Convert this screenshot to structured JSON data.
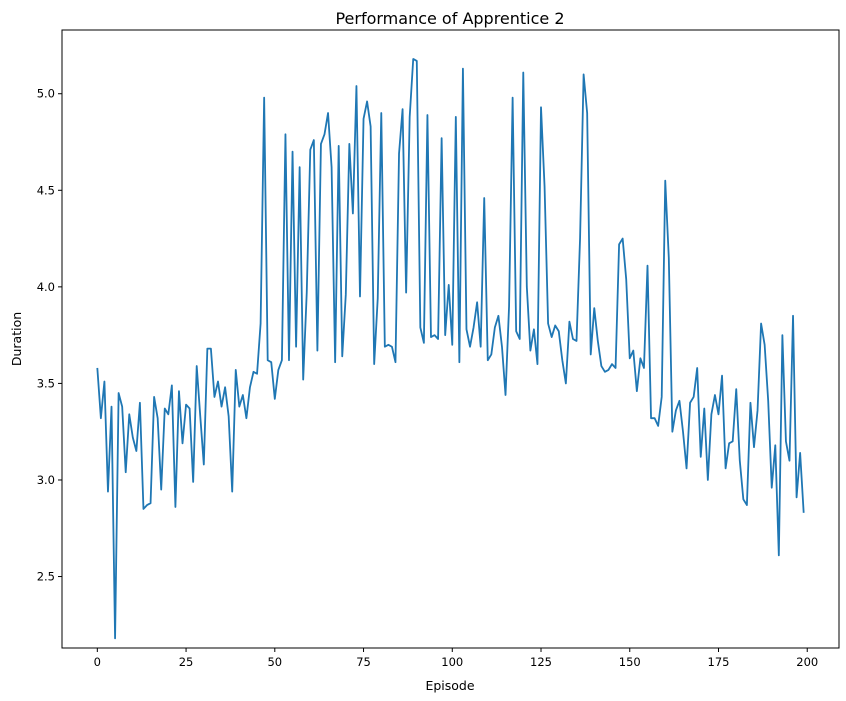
{
  "chart_data": {
    "type": "line",
    "title": "Performance of Apprentice 2",
    "xlabel": "Episode",
    "ylabel": "Duration",
    "xlim": [
      -9.95,
      208.95
    ],
    "ylim": [
      2.13,
      5.33
    ],
    "xticks": [
      0,
      25,
      50,
      75,
      100,
      125,
      150,
      175,
      200
    ],
    "xtick_labels": [
      "0",
      "25",
      "50",
      "75",
      "100",
      "125",
      "150",
      "175",
      "200"
    ],
    "yticks": [
      2.5,
      3.0,
      3.5,
      4.0,
      4.5,
      5.0
    ],
    "ytick_labels": [
      "2.5",
      "3.0",
      "3.5",
      "4.0",
      "4.5",
      "5.0"
    ],
    "grid": false,
    "legend": "none",
    "line_color": "#1f77b4",
    "series": [
      {
        "x": [
          0,
          1,
          2,
          3,
          4,
          5,
          6,
          7,
          8,
          9,
          10,
          11,
          12,
          13,
          14,
          15,
          16,
          17,
          18,
          19,
          20,
          21,
          22,
          23,
          24,
          25,
          26,
          27,
          28,
          29,
          30,
          31,
          32,
          33,
          34,
          35,
          36,
          37,
          38,
          39,
          40,
          41,
          42,
          43,
          44,
          45,
          46,
          47,
          48,
          49,
          50,
          51,
          52,
          53,
          54,
          55,
          56,
          57,
          58,
          59,
          60,
          61,
          62,
          63,
          64,
          65,
          66,
          67,
          68,
          69,
          70,
          71,
          72,
          73,
          74,
          75,
          76,
          77,
          78,
          79,
          80,
          81,
          82,
          83,
          84,
          85,
          86,
          87,
          88,
          89,
          90,
          91,
          92,
          93,
          94,
          95,
          96,
          97,
          98,
          99,
          100,
          101,
          102,
          103,
          104,
          105,
          106,
          107,
          108,
          109,
          110,
          111,
          112,
          113,
          114,
          115,
          116,
          117,
          118,
          119,
          120,
          121,
          122,
          123,
          124,
          125,
          126,
          127,
          128,
          129,
          130,
          131,
          132,
          133,
          134,
          135,
          136,
          137,
          138,
          139,
          140,
          141,
          142,
          143,
          144,
          145,
          146,
          147,
          148,
          149,
          150,
          151,
          152,
          153,
          154,
          155,
          156,
          157,
          158,
          159,
          160,
          161,
          162,
          163,
          164,
          165,
          166,
          167,
          168,
          169,
          170,
          171,
          172,
          173,
          174,
          175,
          176,
          177,
          178,
          179,
          180,
          181,
          182,
          183,
          184,
          185,
          186,
          187,
          188,
          189,
          190,
          191,
          192,
          193,
          194,
          195,
          196,
          197,
          198,
          199
        ],
        "y": [
          3.58,
          3.32,
          3.51,
          2.94,
          3.38,
          2.18,
          3.45,
          3.38,
          3.04,
          3.34,
          3.22,
          3.15,
          3.4,
          2.85,
          2.87,
          2.88,
          3.43,
          3.32,
          2.95,
          3.37,
          3.34,
          3.49,
          2.86,
          3.46,
          3.19,
          3.39,
          3.37,
          2.99,
          3.59,
          3.33,
          3.08,
          3.68,
          3.68,
          3.43,
          3.51,
          3.38,
          3.48,
          3.33,
          2.94,
          3.57,
          3.38,
          3.44,
          3.32,
          3.48,
          3.56,
          3.55,
          3.81,
          4.98,
          3.62,
          3.61,
          3.42,
          3.57,
          3.62,
          4.79,
          3.62,
          4.7,
          3.69,
          4.62,
          3.52,
          3.97,
          4.71,
          4.76,
          3.67,
          4.74,
          4.79,
          4.9,
          4.62,
          3.61,
          4.73,
          3.64,
          3.96,
          4.74,
          4.38,
          5.04,
          3.95,
          4.87,
          4.96,
          4.83,
          3.6,
          3.94,
          4.9,
          3.69,
          3.7,
          3.69,
          3.61,
          4.69,
          4.92,
          3.97,
          4.88,
          5.18,
          5.17,
          3.79,
          3.71,
          4.89,
          3.74,
          3.75,
          3.73,
          4.77,
          3.75,
          4.01,
          3.7,
          4.88,
          3.61,
          5.13,
          3.78,
          3.69,
          3.79,
          3.92,
          3.69,
          4.46,
          3.62,
          3.65,
          3.79,
          3.85,
          3.69,
          3.44,
          3.9,
          4.98,
          3.77,
          3.73,
          5.11,
          4.0,
          3.67,
          3.78,
          3.6,
          4.93,
          4.52,
          3.81,
          3.74,
          3.8,
          3.77,
          3.62,
          3.5,
          3.82,
          3.73,
          3.72,
          4.25,
          5.1,
          4.9,
          3.65,
          3.89,
          3.72,
          3.59,
          3.56,
          3.57,
          3.6,
          3.58,
          4.22,
          4.25,
          4.04,
          3.63,
          3.67,
          3.46,
          3.63,
          3.58,
          4.11,
          3.32,
          3.32,
          3.28,
          3.43,
          4.55,
          4.15,
          3.25,
          3.36,
          3.41,
          3.25,
          3.06,
          3.4,
          3.43,
          3.58,
          3.12,
          3.37,
          3.0,
          3.34,
          3.44,
          3.34,
          3.54,
          3.06,
          3.19,
          3.2,
          3.47,
          3.1,
          2.9,
          2.87,
          3.4,
          3.17,
          3.36,
          3.81,
          3.7,
          3.41,
          2.96,
          3.18,
          2.61,
          3.75,
          3.2,
          3.1,
          3.85,
          2.91,
          3.14,
          2.83
        ]
      }
    ]
  }
}
